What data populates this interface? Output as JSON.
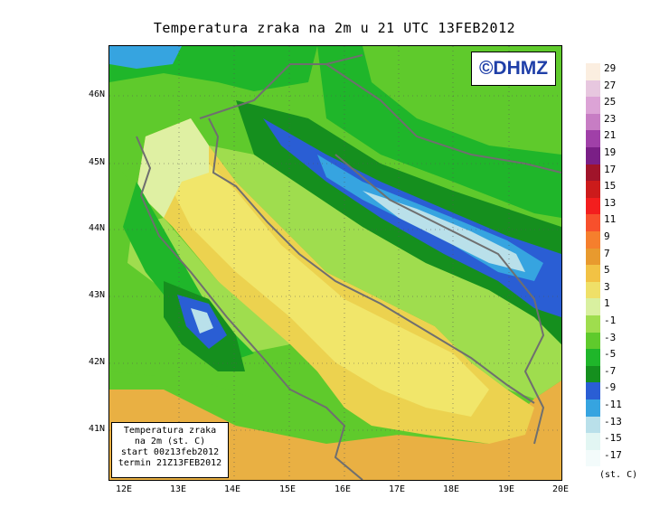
{
  "title": "Temperatura zraka na 2m u 21 UTC 13FEB2012",
  "logo_text": "©DHMZ",
  "info_box": [
    "Temperatura zraka",
    "na 2m (st. C)",
    "start 00z13feb2012",
    "termin 21Z13FEB2012"
  ],
  "lat_ticks": [
    "46N",
    "45N",
    "44N",
    "43N",
    "42N",
    "41N"
  ],
  "lon_ticks": [
    "12E",
    "13E",
    "14E",
    "15E",
    "16E",
    "17E",
    "18E",
    "19E",
    "20E"
  ],
  "legend": {
    "units": "(st. C)",
    "labels": [
      "29",
      "27",
      "25",
      "23",
      "21",
      "19",
      "17",
      "15",
      "13",
      "11",
      "9",
      "7",
      "5",
      "3",
      "1",
      "-1",
      "-3",
      "-5",
      "-7",
      "-9",
      "-11",
      "-13",
      "-15",
      "-17"
    ],
    "colors": [
      "#fbeee0",
      "#e7c7df",
      "#dca3d6",
      "#c77dc4",
      "#a040a8",
      "#7a1f86",
      "#a0142a",
      "#cc1b1b",
      "#f31e1e",
      "#f7502c",
      "#f57f2d",
      "#e89a2e",
      "#f2c244",
      "#efe068",
      "#d9f0a0",
      "#9fdd4e",
      "#5fca2c",
      "#1fb62a",
      "#158f1e",
      "#2a5ed4",
      "#36a4e0",
      "#b9e0ea",
      "#e2f6f3",
      "#f3fbfb"
    ]
  },
  "color_classes": {
    "sea_warm": "#e9b043",
    "sea_mid": "#ecd24f",
    "sea_cool": "#f1e66a",
    "coast": "#dff0a3",
    "land_zero": "#9fdd4e",
    "land": "#5fca2c",
    "land_cold": "#1fb62a",
    "mountain": "#158f1e",
    "very_cold": "#2a5ed4",
    "frost": "#b9e0ea",
    "border": "#6f6f6f"
  }
}
